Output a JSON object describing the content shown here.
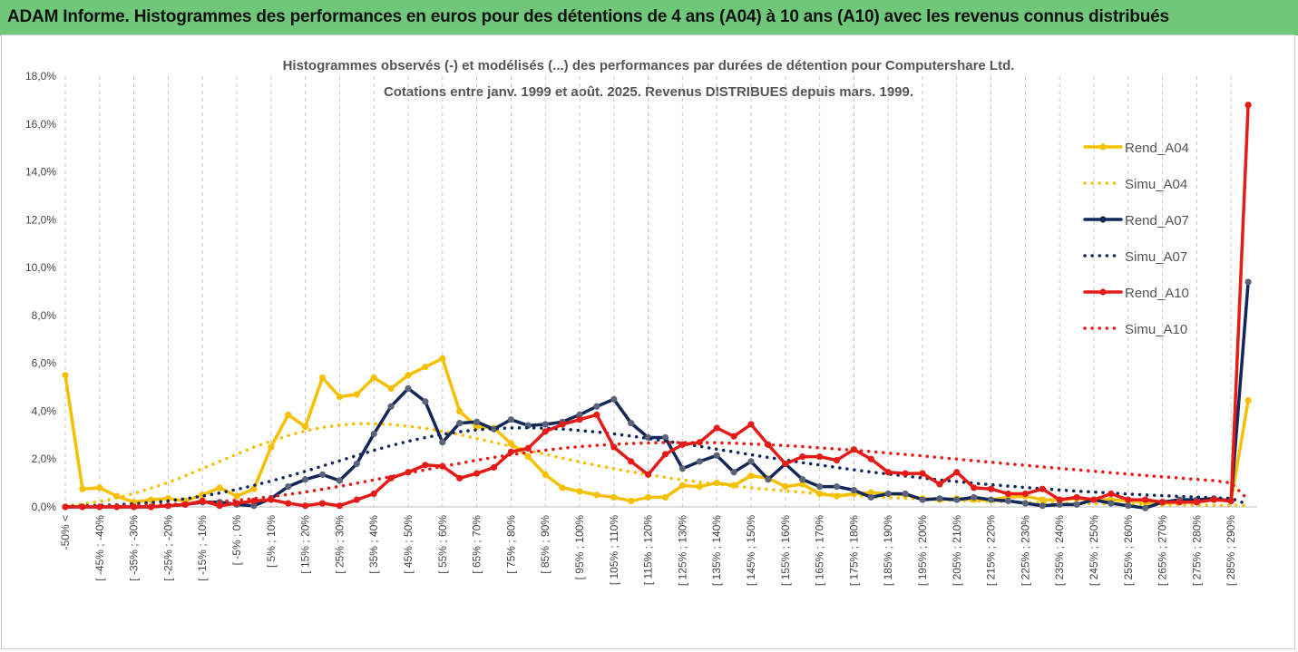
{
  "banner": {
    "title": "ADAM Informe. Histogrammes des performances en euros pour des détentions de 4 ans (A04) à 10 ans (A10) avec les revenus connus distribués"
  },
  "chart_data": {
    "type": "line",
    "title_line1": "Histogrammes observés (-) et modélisés (...) des performances par durées de détention pour Computershare Ltd.",
    "title_line2": "Cotations entre janv. 1999 et août. 2025. Revenus DISTRIBUES depuis mars. 1999.",
    "ylim": [
      0,
      18
    ],
    "y_ticks": [
      "0,0%",
      "2,0%",
      "4,0%",
      "6,0%",
      "8,0%",
      "10,0%",
      "12,0%",
      "14,0%",
      "16,0%",
      "18,0%"
    ],
    "y_tick_values": [
      0,
      2,
      4,
      6,
      8,
      10,
      12,
      14,
      16,
      18
    ],
    "grid": "vertical dashed",
    "legend_position": "right",
    "x_labels": [
      "-50% <",
      "[ -45% ; -40%",
      "[ -35% ; -30%",
      "[ -25% ; -20%",
      "[ -15% ; -10%",
      "[ -5% ; 0%",
      "[ 5% ; 10%",
      "[ 15% ; 20%",
      "[ 25% ; 30%",
      "[ 35% ; 40%",
      "[ 45% ; 50%",
      "[ 55% ; 60%",
      "[ 65% ; 70%",
      "[ 75% ; 80%",
      "[ 85% ; 90%",
      "[ 95% ; 100%",
      "[ 105% ; 110%",
      "[ 115% ; 120%",
      "[ 125% ; 130%",
      "[ 135% ; 140%",
      "[ 145% ; 150%",
      "[ 155% ; 160%",
      "[ 165% ; 170%",
      "[ 175% ; 180%",
      "[ 185% ; 190%",
      "[ 195% ; 200%",
      "[ 205% ; 210%",
      "[ 215% ; 220%",
      "[ 225% ; 230%",
      "[ 235% ; 240%",
      "[ 245% ; 250%",
      "[ 255% ; 260%",
      "[ 265% ; 270%",
      "[ 275% ; 280%",
      "[ 285% ; 290%"
    ],
    "num_points": 70,
    "series": [
      {
        "name": "Rend_A04",
        "style": "solid",
        "color": "#f5c000",
        "values": [
          5.5,
          0.75,
          0.8,
          0.45,
          0.2,
          0.3,
          0.35,
          0.25,
          0.5,
          0.8,
          0.45,
          0.75,
          2.5,
          3.85,
          3.35,
          5.4,
          4.6,
          4.7,
          5.4,
          4.95,
          5.5,
          5.85,
          6.2,
          4.0,
          3.35,
          3.3,
          2.65,
          2.1,
          1.35,
          0.8,
          0.65,
          0.5,
          0.4,
          0.25,
          0.4,
          0.4,
          0.9,
          0.85,
          1.0,
          0.9,
          1.3,
          1.2,
          0.85,
          0.95,
          0.55,
          0.45,
          0.55,
          0.6,
          0.55,
          0.5,
          0.35,
          0.3,
          0.35,
          0.3,
          0.3,
          0.4,
          0.45,
          0.3,
          0.3,
          0.35,
          0.3,
          0.3,
          0.25,
          0.2,
          0.15,
          0.2,
          0.2,
          0.3,
          0.25,
          4.45
        ]
      },
      {
        "name": "Simu_A04",
        "style": "dotted",
        "color": "#f5c000",
        "values": [
          0.05,
          0.12,
          0.22,
          0.37,
          0.56,
          0.78,
          1.02,
          1.3,
          1.6,
          1.9,
          2.2,
          2.5,
          2.75,
          2.98,
          3.18,
          3.32,
          3.42,
          3.48,
          3.48,
          3.44,
          3.37,
          3.28,
          3.16,
          3.02,
          2.86,
          2.7,
          2.53,
          2.36,
          2.2,
          2.04,
          1.88,
          1.73,
          1.6,
          1.47,
          1.35,
          1.24,
          1.13,
          1.04,
          0.95,
          0.87,
          0.8,
          0.73,
          0.67,
          0.61,
          0.56,
          0.51,
          0.47,
          0.43,
          0.39,
          0.36,
          0.33,
          0.3,
          0.27,
          0.25,
          0.23,
          0.21,
          0.19,
          0.17,
          0.16,
          0.15,
          0.13,
          0.12,
          0.11,
          0.1,
          0.09,
          0.09,
          0.08,
          0.07,
          0.07,
          0.06
        ]
      },
      {
        "name": "Rend_A07",
        "style": "solid",
        "color": "#12275a",
        "values": [
          0.0,
          0.0,
          0.0,
          0.0,
          0.0,
          0.0,
          0.05,
          0.1,
          0.2,
          0.2,
          0.1,
          0.05,
          0.35,
          0.85,
          1.15,
          1.35,
          1.1,
          1.8,
          3.05,
          4.2,
          4.95,
          4.4,
          2.7,
          3.5,
          3.55,
          3.25,
          3.65,
          3.4,
          3.45,
          3.55,
          3.85,
          4.2,
          4.5,
          3.5,
          2.9,
          2.9,
          1.6,
          1.9,
          2.15,
          1.45,
          1.9,
          1.15,
          1.8,
          1.15,
          0.85,
          0.85,
          0.7,
          0.4,
          0.55,
          0.55,
          0.3,
          0.35,
          0.3,
          0.4,
          0.3,
          0.25,
          0.15,
          0.05,
          0.1,
          0.1,
          0.3,
          0.15,
          0.05,
          -0.05,
          0.2,
          0.3,
          0.3,
          0.35,
          0.25,
          9.4
        ]
      },
      {
        "name": "Simu_A07",
        "style": "dotted",
        "color": "#12275a",
        "values": [
          0.02,
          0.04,
          0.06,
          0.09,
          0.13,
          0.18,
          0.25,
          0.34,
          0.45,
          0.58,
          0.73,
          0.9,
          1.08,
          1.28,
          1.49,
          1.71,
          1.93,
          2.15,
          2.36,
          2.56,
          2.74,
          2.9,
          3.03,
          3.14,
          3.22,
          3.27,
          3.3,
          3.31,
          3.29,
          3.25,
          3.2,
          3.13,
          3.05,
          2.96,
          2.86,
          2.75,
          2.64,
          2.53,
          2.41,
          2.3,
          2.18,
          2.07,
          1.96,
          1.85,
          1.75,
          1.65,
          1.55,
          1.46,
          1.37,
          1.29,
          1.21,
          1.13,
          1.06,
          0.99,
          0.93,
          0.87,
          0.81,
          0.76,
          0.71,
          0.66,
          0.62,
          0.58,
          0.54,
          0.5,
          0.47,
          0.44,
          0.41,
          0.38,
          0.36,
          0.1
        ]
      },
      {
        "name": "Rend_A10",
        "style": "solid",
        "color": "#e41b17",
        "values": [
          0.0,
          0.0,
          0.0,
          0.0,
          0.0,
          0.0,
          0.05,
          0.1,
          0.25,
          0.05,
          0.15,
          0.25,
          0.3,
          0.15,
          0.05,
          0.15,
          0.05,
          0.3,
          0.55,
          1.2,
          1.45,
          1.75,
          1.7,
          1.2,
          1.4,
          1.65,
          2.3,
          2.45,
          3.15,
          3.45,
          3.65,
          3.85,
          2.5,
          1.9,
          1.35,
          2.2,
          2.6,
          2.7,
          3.3,
          2.95,
          3.45,
          2.6,
          1.8,
          2.1,
          2.1,
          1.95,
          2.4,
          2.0,
          1.45,
          1.4,
          1.4,
          0.95,
          1.45,
          0.8,
          0.75,
          0.55,
          0.55,
          0.75,
          0.3,
          0.4,
          0.3,
          0.55,
          0.3,
          0.3,
          0.2,
          0.2,
          0.2,
          0.3,
          0.25,
          16.8
        ]
      },
      {
        "name": "Simu_A10",
        "style": "dotted",
        "color": "#e41b17",
        "values": [
          0.01,
          0.02,
          0.03,
          0.04,
          0.06,
          0.08,
          0.1,
          0.13,
          0.17,
          0.22,
          0.28,
          0.35,
          0.43,
          0.52,
          0.62,
          0.74,
          0.86,
          0.99,
          1.13,
          1.27,
          1.41,
          1.55,
          1.69,
          1.82,
          1.95,
          2.07,
          2.18,
          2.28,
          2.37,
          2.45,
          2.52,
          2.57,
          2.62,
          2.65,
          2.67,
          2.69,
          2.69,
          2.69,
          2.68,
          2.66,
          2.63,
          2.6,
          2.56,
          2.52,
          2.47,
          2.42,
          2.37,
          2.31,
          2.25,
          2.19,
          2.13,
          2.06,
          2.0,
          1.93,
          1.87,
          1.8,
          1.74,
          1.67,
          1.61,
          1.55,
          1.49,
          1.43,
          1.37,
          1.31,
          1.26,
          1.21,
          1.15,
          1.1,
          1.0,
          0.3
        ]
      }
    ]
  }
}
